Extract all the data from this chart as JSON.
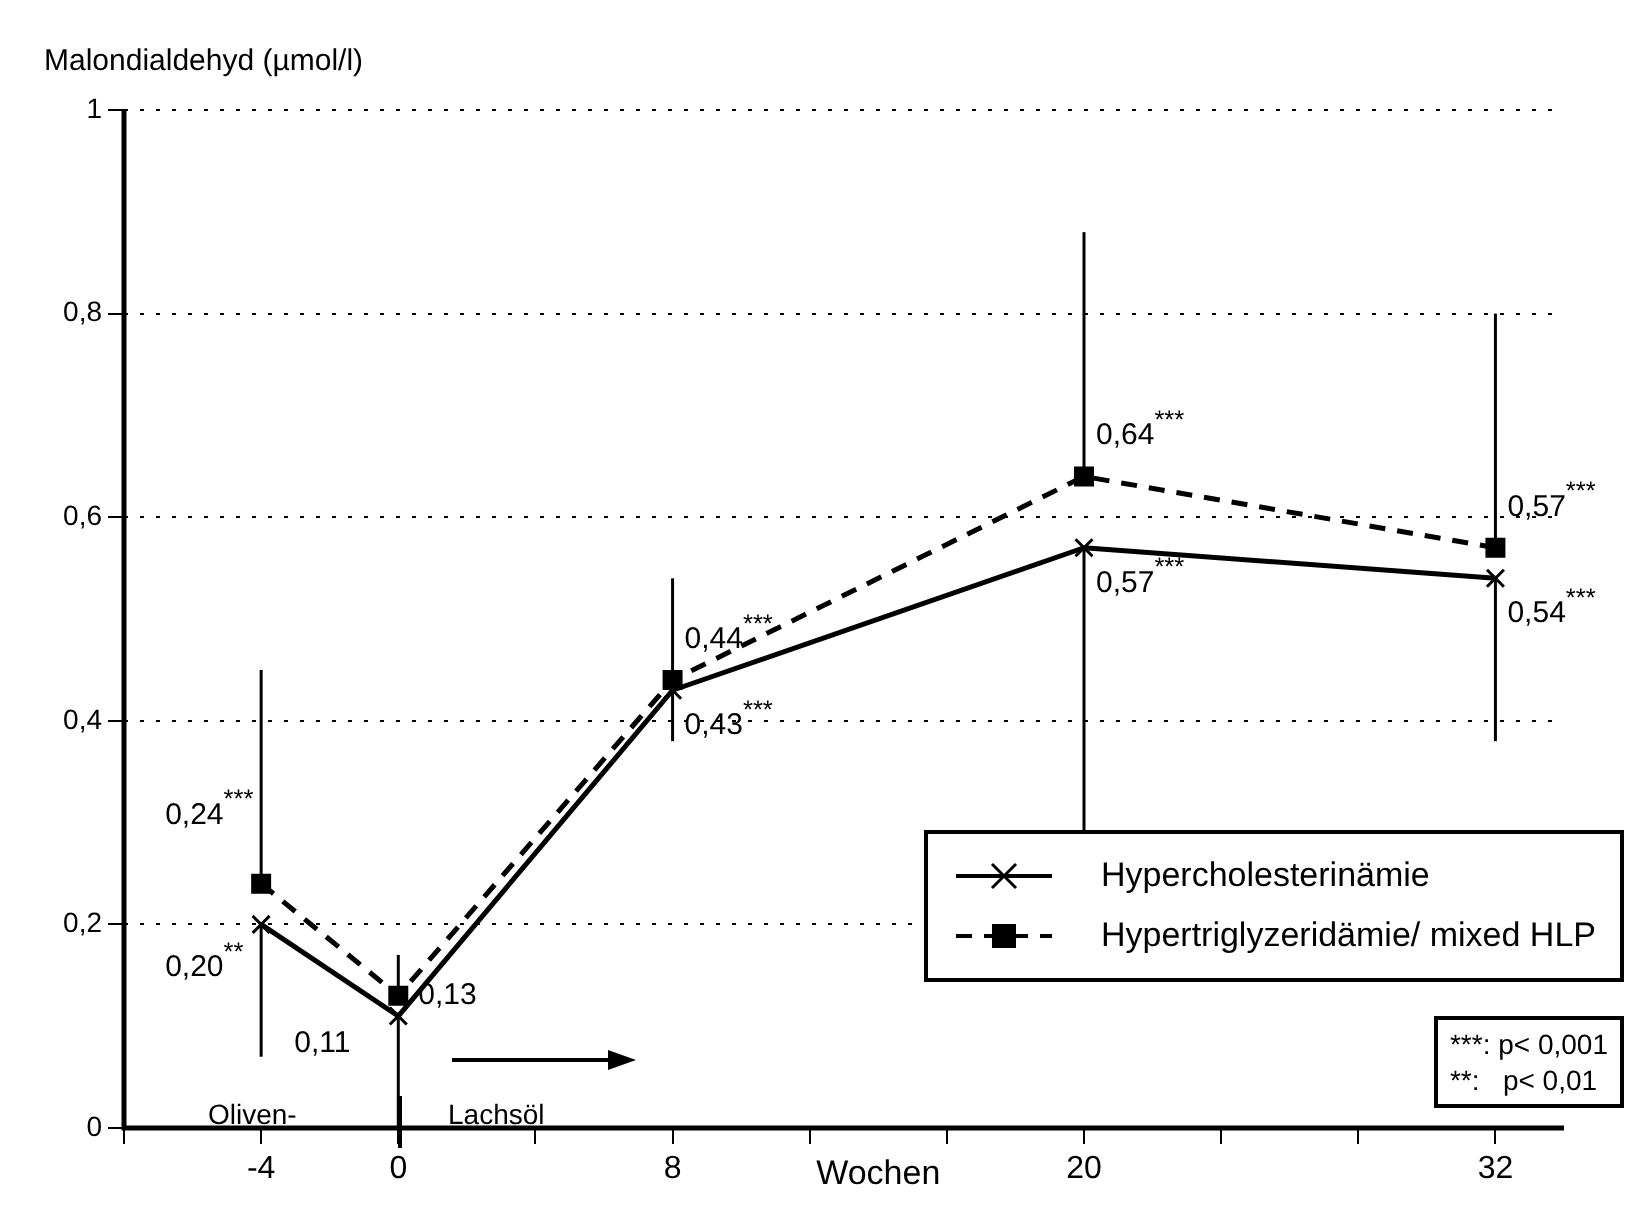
{
  "chart_data": {
    "type": "line",
    "ylabel": "Malondialdehyd (µmol/l)",
    "xlabel": "Wochen",
    "x": [
      -4,
      0,
      8,
      20,
      32
    ],
    "xlim": [
      -8,
      34
    ],
    "xticks": [
      {
        "value": -8,
        "label": null
      },
      -4,
      0,
      {
        "value": 4,
        "label": null
      },
      8,
      {
        "value": 12,
        "label": null
      },
      {
        "value": 16,
        "label": null
      },
      20,
      {
        "value": 24,
        "label": null
      },
      {
        "value": 28,
        "label": null
      },
      32
    ],
    "ylim": [
      0,
      1
    ],
    "yticks": [
      0,
      {
        "value": 0.2,
        "label": "0,2"
      },
      {
        "value": 0.4,
        "label": "0,4"
      },
      {
        "value": 0.6,
        "label": "0,6"
      },
      {
        "value": 0.8,
        "label": "0,8"
      },
      1
    ],
    "grid": "y",
    "legend": "bottom right",
    "series": [
      {
        "name": "Hypercholesterinämie",
        "color": "#000000",
        "marker": "cross",
        "line_style": "solid",
        "values": [
          0.2,
          0.11,
          0.43,
          0.57,
          0.54
        ],
        "errors": [
          [
            0.07,
            0.2
          ],
          [
            0,
            0.11
          ],
          [
            0.38,
            0.43
          ],
          [
            0.29,
            0.57
          ],
          [
            0.38,
            0.54
          ]
        ],
        "value_labels": [
          "0,20$^{**}$",
          "0,11",
          "0,43$^{***}$",
          "0,57$^{***}$",
          "0,54$^{***}$"
        ]
      },
      {
        "name": "Hypertriglyzeridämie/ mixed HLP",
        "color": "#000000",
        "marker": "square",
        "line_style": "dashed",
        "values": [
          0.24,
          0.13,
          0.44,
          0.64,
          0.57
        ],
        "errors": [
          [
            0.24,
            0.45
          ],
          [
            0.13,
            0.17
          ],
          [
            0.44,
            0.54
          ],
          [
            0.64,
            0.88
          ],
          [
            0.57,
            0.8
          ]
        ],
        "value_labels": [
          "0,24$^{***}$",
          "0,13",
          "0,44$^{***}$",
          "0,64$^{***}$",
          "0,57$^{***}$"
        ]
      }
    ],
    "annotations": [
      "Oliven-",
      "Lachsöl",
      "***: p< 0,001",
      "**:   p< 0,01"
    ]
  }
}
